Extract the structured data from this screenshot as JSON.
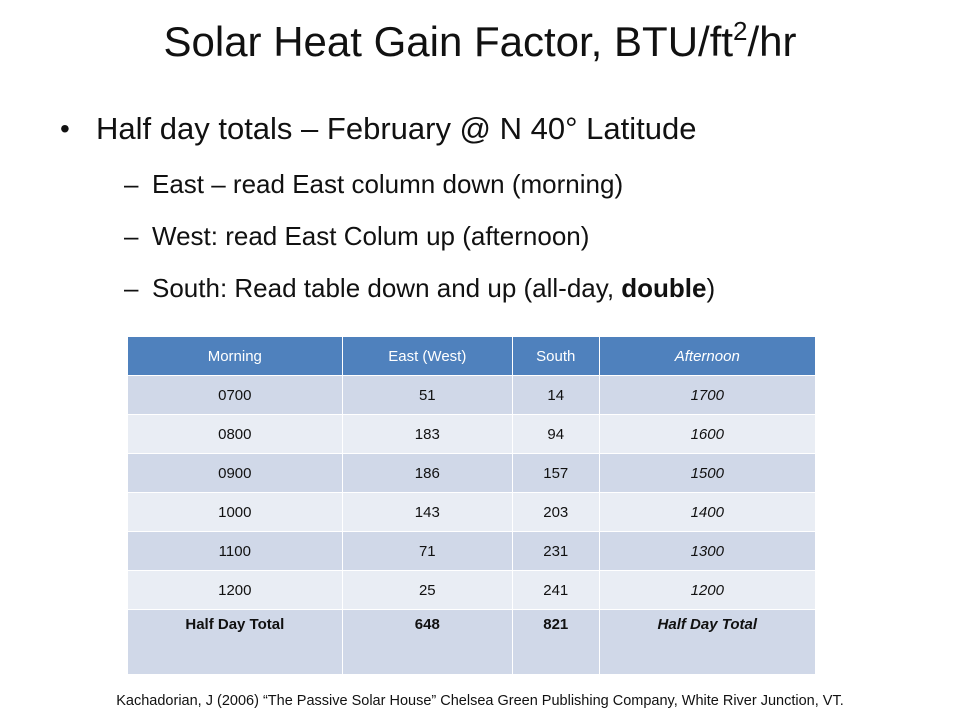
{
  "title": {
    "main": "Solar Heat Gain Factor, BTU/ft",
    "sup": "2",
    "tail": "/hr"
  },
  "bullet": {
    "marker": "•",
    "text": "Half day totals – February @ N 40° Latitude",
    "dash": "–",
    "subitems": [
      {
        "text": "East – read East column down (morning)"
      },
      {
        "text": "West: read East Colum up (afternoon)"
      },
      {
        "pre": "South: Read table down and up (all-day, ",
        "bold": "double",
        "post": ")"
      }
    ]
  },
  "table": {
    "headers": [
      "Morning",
      "East (West)",
      "South",
      "Afternoon"
    ],
    "rows": [
      [
        "0700",
        "51",
        "14",
        "1700"
      ],
      [
        "0800",
        "183",
        "94",
        "1600"
      ],
      [
        "0900",
        "186",
        "157",
        "1500"
      ],
      [
        "1000",
        "143",
        "203",
        "1400"
      ],
      [
        "1100",
        "71",
        "231",
        "1300"
      ],
      [
        "1200",
        "25",
        "241",
        "1200"
      ]
    ],
    "total": [
      "Half Day Total",
      "648",
      "821",
      "Half Day Total"
    ]
  },
  "footer": "Kachadorian, J (2006) “The Passive Solar House” Chelsea Green Publishing Company, White River Junction, VT."
}
